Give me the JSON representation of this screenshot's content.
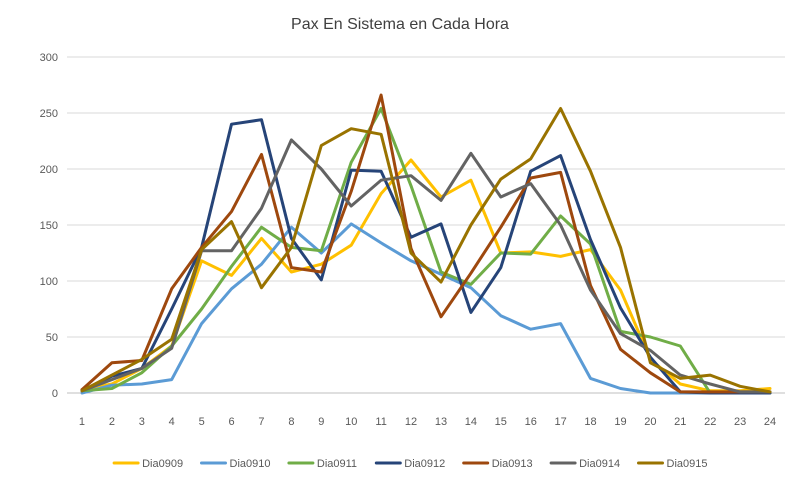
{
  "chart_data": {
    "type": "line",
    "title": "Pax En Sistema en Cada Hora",
    "xlabel": "",
    "ylabel": "",
    "x": [
      1,
      2,
      3,
      4,
      5,
      6,
      7,
      8,
      9,
      10,
      11,
      12,
      13,
      14,
      15,
      16,
      17,
      18,
      19,
      20,
      21,
      22,
      23,
      24
    ],
    "ylim": [
      0,
      300
    ],
    "yticks": [
      0,
      50,
      100,
      150,
      200,
      250,
      300
    ],
    "grid": true,
    "legend_position": "bottom",
    "series": [
      {
        "name": "Dia0909",
        "color": "#FFC000",
        "values": [
          3,
          8,
          22,
          42,
          118,
          105,
          138,
          108,
          115,
          132,
          178,
          208,
          175,
          190,
          125,
          126,
          122,
          128,
          92,
          30,
          8,
          2,
          2,
          4
        ]
      },
      {
        "name": "Dia0910",
        "color": "#5B9BD5",
        "values": [
          0,
          7,
          8,
          12,
          62,
          93,
          115,
          148,
          125,
          151,
          134,
          118,
          106,
          94,
          69,
          57,
          62,
          13,
          4,
          0,
          0,
          0,
          0,
          0
        ]
      },
      {
        "name": "Dia0911",
        "color": "#70AD47",
        "values": [
          2,
          4,
          18,
          42,
          75,
          113,
          148,
          130,
          127,
          206,
          254,
          185,
          108,
          97,
          125,
          124,
          158,
          133,
          55,
          50,
          42,
          0,
          0,
          0
        ]
      },
      {
        "name": "Dia0912",
        "color": "#264478",
        "values": [
          2,
          15,
          22,
          75,
          130,
          240,
          244,
          138,
          101,
          199,
          198,
          139,
          151,
          72,
          112,
          198,
          212,
          137,
          76,
          32,
          1,
          0,
          0,
          0
        ]
      },
      {
        "name": "Dia0913",
        "color": "#9E480E",
        "values": [
          3,
          27,
          29,
          93,
          130,
          162,
          213,
          112,
          108,
          180,
          266,
          129,
          68,
          107,
          148,
          192,
          197,
          96,
          39,
          18,
          1,
          1,
          1,
          1
        ]
      },
      {
        "name": "Dia0914",
        "color": "#636363",
        "values": [
          2,
          12,
          22,
          40,
          127,
          127,
          165,
          226,
          200,
          167,
          190,
          194,
          172,
          214,
          175,
          187,
          150,
          92,
          53,
          38,
          16,
          8,
          1,
          1
        ]
      },
      {
        "name": "Dia0915",
        "color": "#997300",
        "values": [
          2,
          16,
          30,
          48,
          128,
          153,
          94,
          130,
          221,
          236,
          231,
          125,
          99,
          150,
          191,
          209,
          254,
          198,
          130,
          27,
          13,
          16,
          6,
          1
        ]
      }
    ]
  }
}
